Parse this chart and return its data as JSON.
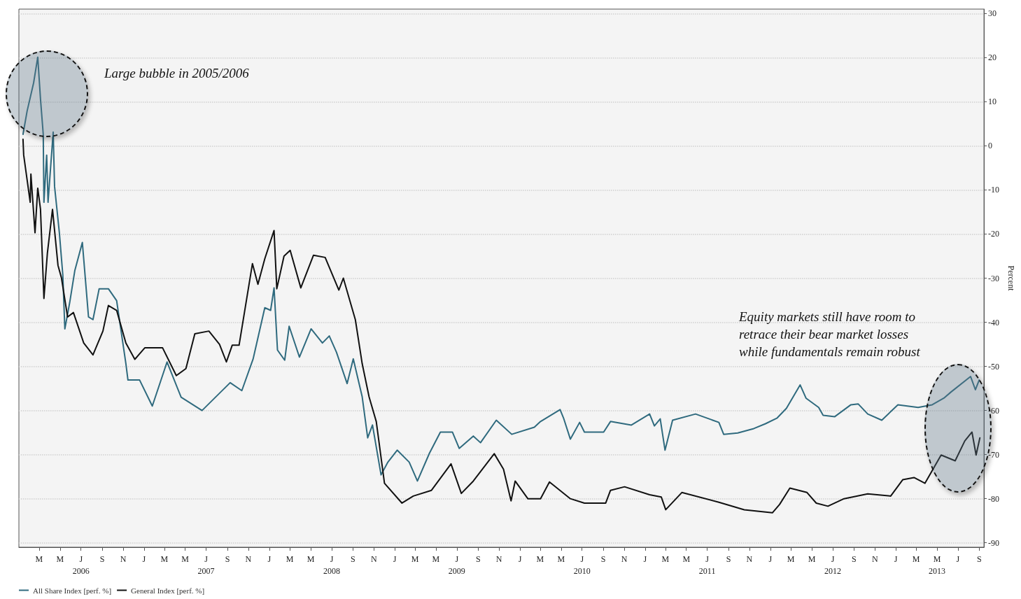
{
  "chart_data": {
    "type": "line",
    "ylabel": "Percent",
    "annotations": [
      "Large bubble in 2005/2006",
      "Equity markets still have room to\nretrace their bear market losses\nwhile fundamentals remain robust"
    ],
    "xlim": [
      "2006-01-01",
      "2013-09-15"
    ],
    "xticks": [
      {
        "value": "2006-03-01",
        "label": "M"
      },
      {
        "value": "2006-05-01",
        "label": "M"
      },
      {
        "value": "2006-07-01",
        "label": "J\n2006"
      },
      {
        "value": "2006-09-01",
        "label": "S"
      },
      {
        "value": "2006-11-01",
        "label": "N"
      },
      {
        "value": "2007-01-01",
        "label": "J"
      },
      {
        "value": "2007-03-01",
        "label": "M"
      },
      {
        "value": "2007-05-01",
        "label": "M"
      },
      {
        "value": "2007-07-01",
        "label": "J\n2007"
      },
      {
        "value": "2007-09-01",
        "label": "S"
      },
      {
        "value": "2007-11-01",
        "label": "N"
      },
      {
        "value": "2008-01-01",
        "label": "J"
      },
      {
        "value": "2008-03-01",
        "label": "M"
      },
      {
        "value": "2008-05-01",
        "label": "M"
      },
      {
        "value": "2008-07-01",
        "label": "J\n2008"
      },
      {
        "value": "2008-09-01",
        "label": "S"
      },
      {
        "value": "2008-11-01",
        "label": "N"
      },
      {
        "value": "2009-01-01",
        "label": "J"
      },
      {
        "value": "2009-03-01",
        "label": "M"
      },
      {
        "value": "2009-05-01",
        "label": "M"
      },
      {
        "value": "2009-07-01",
        "label": "J\n2009"
      },
      {
        "value": "2009-09-01",
        "label": "S"
      },
      {
        "value": "2009-11-01",
        "label": "N"
      },
      {
        "value": "2010-01-01",
        "label": "J"
      },
      {
        "value": "2010-03-01",
        "label": "M"
      },
      {
        "value": "2010-05-01",
        "label": "M"
      },
      {
        "value": "2010-07-01",
        "label": "J\n2010"
      },
      {
        "value": "2010-09-01",
        "label": "S"
      },
      {
        "value": "2010-11-01",
        "label": "N"
      },
      {
        "value": "2011-01-01",
        "label": "J"
      },
      {
        "value": "2011-03-01",
        "label": "M"
      },
      {
        "value": "2011-05-01",
        "label": "M"
      },
      {
        "value": "2011-07-01",
        "label": "J\n2011"
      },
      {
        "value": "2011-09-01",
        "label": "S"
      },
      {
        "value": "2011-11-01",
        "label": "N"
      },
      {
        "value": "2012-01-01",
        "label": "J"
      },
      {
        "value": "2012-03-01",
        "label": "M"
      },
      {
        "value": "2012-05-01",
        "label": "M"
      },
      {
        "value": "2012-07-01",
        "label": "J\n2012"
      },
      {
        "value": "2012-09-01",
        "label": "S"
      },
      {
        "value": "2012-11-01",
        "label": "N"
      },
      {
        "value": "2013-01-01",
        "label": "J"
      },
      {
        "value": "2013-03-01",
        "label": "M"
      },
      {
        "value": "2013-05-01",
        "label": "M\n2013"
      },
      {
        "value": "2013-07-01",
        "label": "J"
      },
      {
        "value": "2013-09-01",
        "label": "S"
      }
    ],
    "ylim": [
      -91,
      31
    ],
    "yticks": [
      -90,
      -80,
      -70,
      -60,
      -50,
      -40,
      -30,
      -20,
      -10,
      0,
      10,
      20,
      30
    ],
    "grid": "y",
    "legend": "bottom left",
    "marker": "none",
    "line_style": "solid",
    "series": [
      {
        "name": "All Share Index [perf. %]",
        "color": "#2f6a7e",
        "x": [
          "2006-01-13",
          "2006-01-25",
          "2006-02-13",
          "2006-02-25",
          "2006-03-05",
          "2006-03-13",
          "2006-03-15",
          "2006-03-23",
          "2006-03-27",
          "2006-04-11",
          "2006-04-15",
          "2006-04-29",
          "2006-05-09",
          "2006-05-15",
          "2006-05-29",
          "2006-06-13",
          "2006-07-05",
          "2006-07-23",
          "2006-08-05",
          "2006-08-23",
          "2006-09-19",
          "2006-10-13",
          "2006-11-09",
          "2006-11-15",
          "2006-12-19",
          "2007-01-25",
          "2007-03-09",
          "2007-04-19",
          "2007-06-19",
          "2007-09-09",
          "2007-10-13",
          "2007-11-15",
          "2007-12-19",
          "2008-01-05",
          "2008-01-15",
          "2008-01-25",
          "2008-02-15",
          "2008-02-28",
          "2008-03-29",
          "2008-05-02",
          "2008-06-04",
          "2008-06-24",
          "2008-07-15",
          "2008-08-15",
          "2008-09-02",
          "2008-09-28",
          "2008-10-14",
          "2008-10-28",
          "2008-11-22",
          "2008-12-12",
          "2009-01-08",
          "2009-02-12",
          "2009-03-08",
          "2009-04-12",
          "2009-05-14",
          "2009-06-18",
          "2009-07-08",
          "2009-08-18",
          "2009-09-08",
          "2009-10-24",
          "2009-12-08",
          "2010-02-12",
          "2010-03-02",
          "2010-04-28",
          "2010-05-08",
          "2010-05-28",
          "2010-06-24",
          "2010-07-08",
          "2010-09-02",
          "2010-09-22",
          "2010-11-22",
          "2011-01-14",
          "2011-01-28",
          "2011-02-14",
          "2011-02-28",
          "2011-03-22",
          "2011-05-28",
          "2011-08-04",
          "2011-08-18",
          "2011-09-28",
          "2011-11-14",
          "2011-12-18",
          "2012-01-21",
          "2012-02-17",
          "2012-03-28",
          "2012-04-14",
          "2012-05-21",
          "2012-06-03",
          "2012-07-07",
          "2012-08-23",
          "2012-09-13",
          "2012-10-11",
          "2012-11-21",
          "2013-01-07",
          "2013-03-07",
          "2013-04-17",
          "2013-05-21",
          "2013-06-11",
          "2013-08-07",
          "2013-08-21",
          "2013-09-01"
        ],
        "values": [
          2.6,
          7.9,
          14.3,
          20.1,
          10.6,
          2.6,
          -12.8,
          -2.1,
          -12.8,
          3.1,
          -9.2,
          -19.7,
          -29.2,
          -41.5,
          -35.6,
          -28.3,
          -21.9,
          -38.8,
          -39.4,
          -32.4,
          -32.4,
          -35.1,
          -49.4,
          -53.1,
          -53.1,
          -59,
          -49,
          -57,
          -60,
          -53.7,
          -55.5,
          -48.3,
          -36.7,
          -37.3,
          -32.2,
          -46.3,
          -48.6,
          -40.9,
          -47.9,
          -41.5,
          -44.7,
          -43.1,
          -46.8,
          -53.9,
          -48.3,
          -56.9,
          -66.2,
          -63.3,
          -74.6,
          -71.7,
          -69,
          -71.7,
          -76,
          -69.7,
          -64.9,
          -64.9,
          -68.6,
          -65.8,
          -67.3,
          -62.2,
          -65.4,
          -63.8,
          -62.5,
          -59.8,
          -61.7,
          -66.5,
          -62.7,
          -64.9,
          -64.9,
          -62.5,
          -63.3,
          -60.8,
          -63.5,
          -61.9,
          -69,
          -62.2,
          -60.8,
          -62.7,
          -65.4,
          -65.1,
          -64.1,
          -63,
          -61.7,
          -59.5,
          -54.2,
          -57.2,
          -59.3,
          -61.1,
          -61.4,
          -58.7,
          -58.5,
          -60.8,
          -62.2,
          -58.7,
          -59.3,
          -58.7,
          -57.2,
          -55.8,
          -52.3,
          -55.3,
          -53.1
        ]
      },
      {
        "name": "General Index [perf. %]",
        "color": "#111111",
        "x": [
          "2006-01-13",
          "2006-01-15",
          "2006-02-03",
          "2006-02-05",
          "2006-02-17",
          "2006-02-25",
          "2006-03-05",
          "2006-03-15",
          "2006-03-25",
          "2006-04-09",
          "2006-04-25",
          "2006-05-05",
          "2006-05-23",
          "2006-06-09",
          "2006-07-09",
          "2006-08-05",
          "2006-09-03",
          "2006-09-19",
          "2006-10-13",
          "2006-11-09",
          "2006-12-05",
          "2007-01-03",
          "2007-02-24",
          "2007-04-05",
          "2007-05-03",
          "2007-05-29",
          "2007-07-09",
          "2007-08-09",
          "2007-08-29",
          "2007-09-15",
          "2007-10-05",
          "2007-11-13",
          "2007-11-29",
          "2007-12-19",
          "2008-01-15",
          "2008-01-23",
          "2008-02-13",
          "2008-03-02",
          "2008-04-02",
          "2008-05-09",
          "2008-06-12",
          "2008-07-22",
          "2008-08-04",
          "2008-09-08",
          "2008-09-28",
          "2008-10-18",
          "2008-11-08",
          "2008-12-02",
          "2009-01-22",
          "2009-02-24",
          "2009-04-18",
          "2009-06-14",
          "2009-07-14",
          "2009-08-18",
          "2009-10-18",
          "2009-11-14",
          "2009-12-06",
          "2009-12-18",
          "2010-01-24",
          "2010-03-02",
          "2010-03-28",
          "2010-05-28",
          "2010-07-08",
          "2010-09-08",
          "2010-09-22",
          "2010-11-02",
          "2011-01-14",
          "2011-02-17",
          "2011-03-02",
          "2011-04-18",
          "2011-08-04",
          "2011-10-17",
          "2012-01-07",
          "2012-01-28",
          "2012-02-27",
          "2012-04-17",
          "2012-05-14",
          "2012-06-17",
          "2012-08-03",
          "2012-10-11",
          "2012-12-17",
          "2013-01-21",
          "2013-02-23",
          "2013-03-27",
          "2013-05-13",
          "2013-06-23",
          "2013-07-21",
          "2013-08-11",
          "2013-08-23",
          "2013-09-03"
        ],
        "values": [
          1.5,
          -2.1,
          -12.8,
          -6.4,
          -19.7,
          -9.6,
          -14.4,
          -34.6,
          -24.4,
          -14.4,
          -27.1,
          -29.9,
          -38.8,
          -37.8,
          -44.7,
          -47.4,
          -42,
          -36.2,
          -37.3,
          -44.7,
          -48.4,
          -45.8,
          -45.8,
          -52.1,
          -50.5,
          -42.6,
          -42,
          -45,
          -49,
          -45.2,
          -45.2,
          -26.7,
          -31.4,
          -25.6,
          -19.2,
          -32.4,
          -25,
          -23.7,
          -32.2,
          -24.8,
          -25.3,
          -32.7,
          -30,
          -39.4,
          -49.4,
          -56.9,
          -62.5,
          -76.5,
          -81,
          -79.4,
          -78.1,
          -72.1,
          -78.8,
          -76,
          -69.8,
          -73.3,
          -80.5,
          -76,
          -80,
          -80,
          -76.2,
          -80,
          -81,
          -81,
          -78.1,
          -77.3,
          -79.1,
          -79.6,
          -82.5,
          -78.6,
          -80.8,
          -82.5,
          -83.2,
          -81.3,
          -77.6,
          -78.6,
          -81,
          -81.7,
          -80,
          -78.9,
          -79.4,
          -75.7,
          -75.2,
          -76.5,
          -70.1,
          -71.4,
          -66.9,
          -64.9,
          -70.1,
          -66.2
        ]
      }
    ]
  }
}
